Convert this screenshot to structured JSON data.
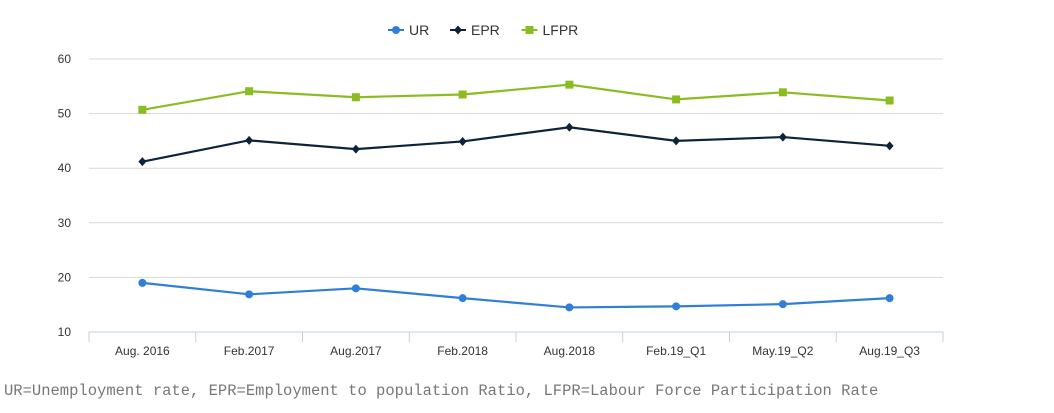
{
  "chart_data": {
    "type": "line",
    "title": "",
    "xlabel": "",
    "ylabel": "",
    "ylim": [
      10,
      60
    ],
    "yticks": [
      10,
      20,
      30,
      40,
      50,
      60
    ],
    "grid": true,
    "legend_position": "top",
    "categories": [
      "Aug. 2016",
      "Feb.2017",
      "Aug.2017",
      "Feb.2018",
      "Aug.2018",
      "Feb.19_Q1",
      "May.19_Q2",
      "Aug.19_Q3"
    ],
    "series": [
      {
        "name": "UR",
        "color": "#2f7ed8",
        "marker": "circle",
        "values": [
          19.0,
          16.9,
          18.0,
          16.2,
          14.5,
          14.7,
          15.1,
          16.2
        ]
      },
      {
        "name": "EPR",
        "color": "#0d233a",
        "marker": "diamond",
        "values": [
          41.2,
          45.1,
          43.5,
          44.9,
          47.5,
          45.0,
          45.7,
          44.1
        ]
      },
      {
        "name": "LFPR",
        "color": "#8bbc21",
        "marker": "square",
        "values": [
          50.7,
          54.1,
          53.0,
          53.5,
          55.3,
          52.6,
          53.9,
          52.4
        ]
      }
    ]
  },
  "footnote": "UR=Unemployment rate, EPR=Employment to population Ratio, LFPR=Labour Force Participation Rate"
}
